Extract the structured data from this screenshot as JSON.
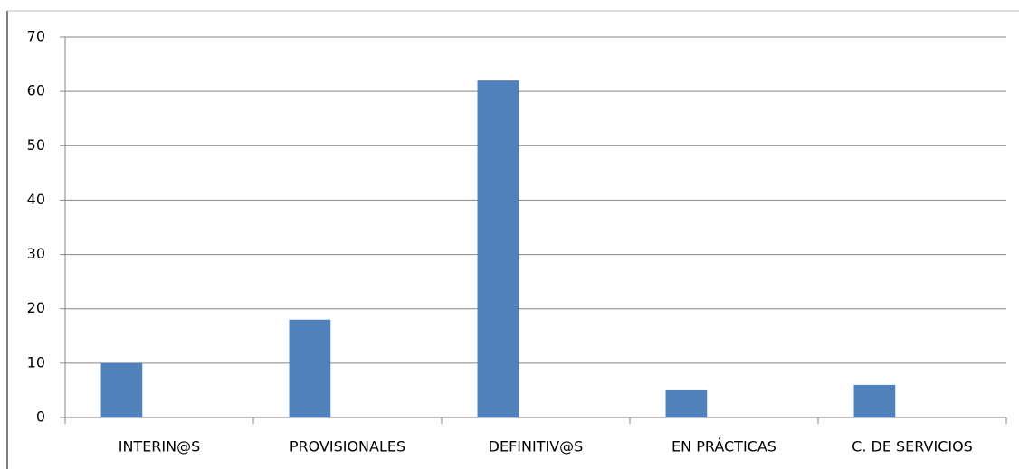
{
  "chart_data": {
    "type": "bar",
    "categories": [
      "INTERIN@S",
      "PROVISIONALES",
      "DEFINITIV@S",
      "EN PRÁCTICAS",
      "C. DE SERVICIOS"
    ],
    "values": [
      10,
      18,
      62,
      5,
      6
    ],
    "color": "#4f81bd",
    "ylim": [
      0,
      70
    ],
    "yticks": [
      0,
      10,
      20,
      30,
      40,
      50,
      60,
      70
    ],
    "grid": true
  }
}
